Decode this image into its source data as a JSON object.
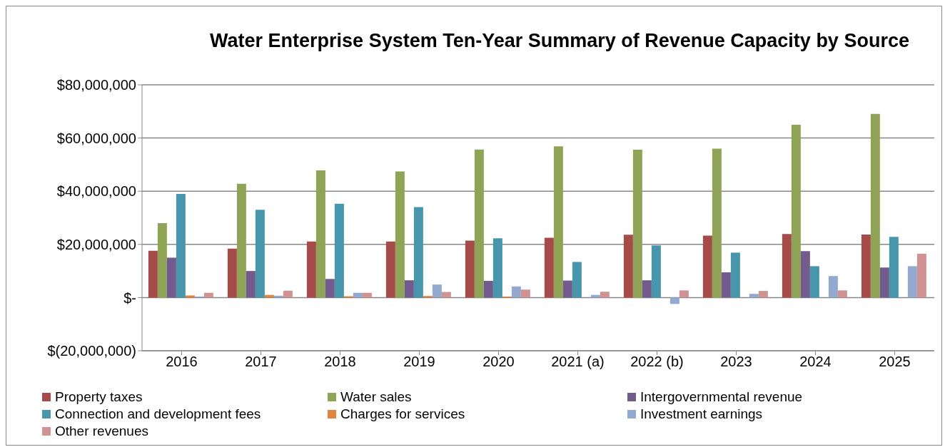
{
  "chart_data": {
    "type": "bar",
    "title": "Water Enterprise System Ten-Year Summary of Revenue Capacity by Source",
    "categories": [
      "2016",
      "2017",
      "2018",
      "2019",
      "2020",
      "2021 (a)",
      "2022 (b)",
      "2023",
      "2024",
      "2025"
    ],
    "series": [
      {
        "name": "Property taxes",
        "color": "#a54b4a",
        "values": [
          17600000,
          18400000,
          21100000,
          21100000,
          21400000,
          22500000,
          23600000,
          23300000,
          23900000,
          23700000
        ]
      },
      {
        "name": "Water sales",
        "color": "#90a457",
        "values": [
          28000000,
          42800000,
          47800000,
          47400000,
          55700000,
          56900000,
          55600000,
          56000000,
          65000000,
          69100000
        ]
      },
      {
        "name": "Intergovernmental revenue",
        "color": "#735b8e",
        "values": [
          15000000,
          10000000,
          7000000,
          6500000,
          6300000,
          6400000,
          6500000,
          9500000,
          17500000,
          11300000
        ]
      },
      {
        "name": "Connection and development fees",
        "color": "#4796ab",
        "values": [
          39000000,
          33000000,
          35300000,
          34000000,
          22300000,
          13400000,
          19600000,
          16900000,
          11800000,
          22800000
        ]
      },
      {
        "name": "Charges for services",
        "color": "#e0843e",
        "values": [
          800000,
          1000000,
          500000,
          600000,
          400000,
          null,
          0,
          0,
          0,
          null
        ]
      },
      {
        "name": "Investment earnings",
        "color": "#93a9cf",
        "values": [
          400000,
          700000,
          1800000,
          4900000,
          4200000,
          1000000,
          -2400000,
          1400000,
          8100000,
          11800000
        ]
      },
      {
        "name": "Other revenues",
        "color": "#d09392",
        "values": [
          1800000,
          2600000,
          1800000,
          2100000,
          3000000,
          2200000,
          2700000,
          2500000,
          2700000,
          16500000
        ]
      }
    ],
    "ylim": [
      -20000000,
      80000000
    ],
    "yticks": [
      {
        "value": -20000000,
        "label": "$(20,000,000)"
      },
      {
        "value": 0,
        "label": "$-"
      },
      {
        "value": 20000000,
        "label": "$20,000,000"
      },
      {
        "value": 40000000,
        "label": "$40,000,000"
      },
      {
        "value": 60000000,
        "label": "$60,000,000"
      },
      {
        "value": 80000000,
        "label": "$80,000,000"
      }
    ],
    "grid": "y",
    "legend": "bottom"
  }
}
